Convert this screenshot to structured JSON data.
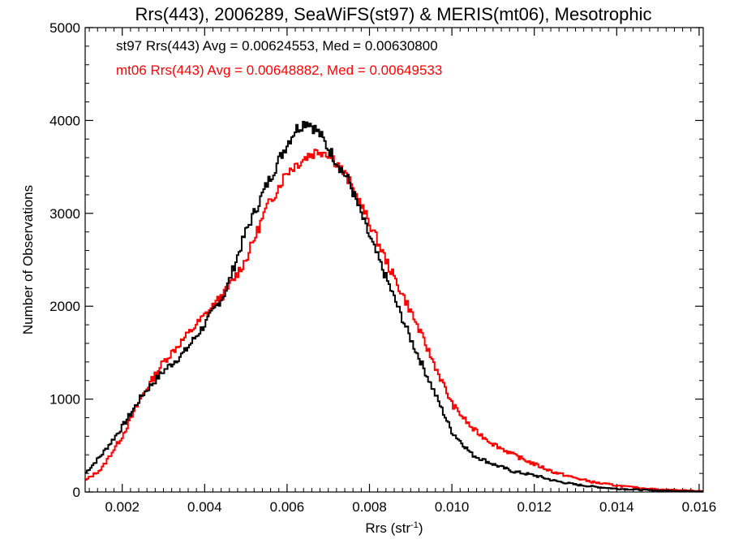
{
  "chart_data": {
    "type": "line",
    "title": "Rrs(443), 2006289, SeaWiFS(st97) & MERIS(mt06), Mesotrophic",
    "xlabel": "Rrs (str",
    "xlabel_superscript": "-1",
    "xlabel_close": ")",
    "ylabel": "Number of Observations",
    "xlim": [
      0.0011,
      0.0161
    ],
    "ylim": [
      0,
      5000
    ],
    "xticks": [
      0.002,
      0.004,
      0.006,
      0.008,
      0.01,
      0.012,
      0.014,
      0.016
    ],
    "xtick_labels": [
      "0.002",
      "0.004",
      "0.006",
      "0.008",
      "0.010",
      "0.012",
      "0.014",
      "0.016"
    ],
    "yticks": [
      0,
      1000,
      2000,
      3000,
      4000,
      5000
    ],
    "ytick_labels": [
      "0",
      "1000",
      "2000",
      "3000",
      "4000",
      "5000"
    ],
    "grid": false,
    "annotations": [
      "st97 Rrs(443) Avg = 0.00624553, Med = 0.00630800",
      "mt06 Rrs(443) Avg = 0.00648882, Med = 0.00649533"
    ],
    "series": [
      {
        "name": "st97",
        "color": "#000000",
        "x": [
          0.0011,
          0.0015,
          0.002,
          0.0025,
          0.003,
          0.0035,
          0.004,
          0.0045,
          0.005,
          0.0055,
          0.006,
          0.0062,
          0.0064,
          0.0065,
          0.0066,
          0.0068,
          0.007,
          0.0075,
          0.008,
          0.0085,
          0.009,
          0.0095,
          0.01,
          0.0105,
          0.011,
          0.0115,
          0.012,
          0.0125,
          0.013,
          0.0135,
          0.014,
          0.0145,
          0.015,
          0.016
        ],
        "values": [
          200,
          400,
          700,
          1050,
          1300,
          1500,
          1800,
          2150,
          2800,
          3300,
          3750,
          3900,
          3970,
          4000,
          3950,
          3850,
          3700,
          3350,
          2750,
          2200,
          1650,
          1150,
          650,
          400,
          300,
          220,
          180,
          120,
          80,
          55,
          35,
          25,
          15,
          8
        ]
      },
      {
        "name": "mt06",
        "color": "#ff0000",
        "x": [
          0.0011,
          0.0015,
          0.002,
          0.0025,
          0.003,
          0.0035,
          0.004,
          0.0045,
          0.005,
          0.0055,
          0.006,
          0.0065,
          0.0068,
          0.007,
          0.0072,
          0.0075,
          0.008,
          0.0085,
          0.009,
          0.0095,
          0.01,
          0.0105,
          0.011,
          0.0115,
          0.012,
          0.0125,
          0.013,
          0.0135,
          0.014,
          0.0145,
          0.015,
          0.016
        ],
        "values": [
          120,
          250,
          600,
          1050,
          1400,
          1650,
          1900,
          2150,
          2500,
          3050,
          3450,
          3620,
          3680,
          3650,
          3550,
          3350,
          2900,
          2400,
          1950,
          1450,
          950,
          680,
          520,
          400,
          300,
          210,
          150,
          100,
          70,
          45,
          28,
          12
        ]
      }
    ]
  }
}
